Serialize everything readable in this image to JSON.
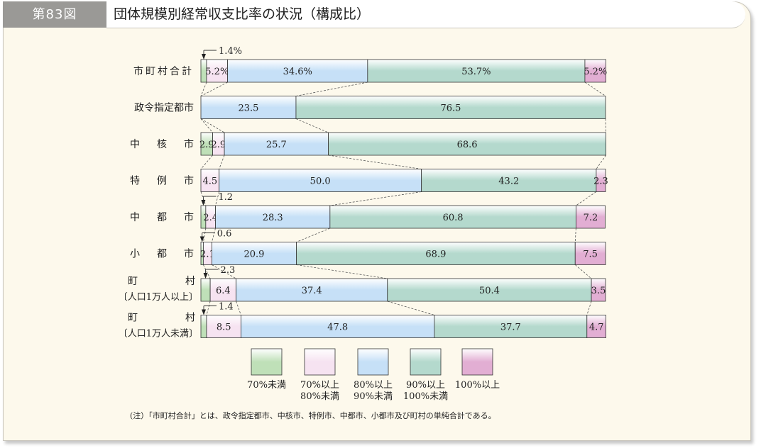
{
  "figure": {
    "number": "第83図",
    "title": "団体規模別経常収支比率の状況（構成比）"
  },
  "chart_data": {
    "type": "bar",
    "stacked": true,
    "horizontal": true,
    "xlim": [
      0,
      100
    ],
    "unit": "%",
    "categories": [
      {
        "lines": [
          "市町村合計"
        ],
        "spaced": true
      },
      {
        "lines": [
          "政令指定都市"
        ],
        "spaced": false
      },
      {
        "lines": [
          "中",
          "核",
          "市"
        ],
        "spaced": false
      },
      {
        "lines": [
          "特",
          "例",
          "市"
        ],
        "spaced": false
      },
      {
        "lines": [
          "中",
          "都",
          "市"
        ],
        "spaced": false
      },
      {
        "lines": [
          "小",
          "都",
          "市"
        ],
        "spaced": false
      },
      {
        "lines": [
          "町",
          "村",
          "〔人口1万人以上〕"
        ],
        "spaced": false
      },
      {
        "lines": [
          "町",
          "村",
          "〔人口1万人未満〕"
        ],
        "spaced": false
      }
    ],
    "series": [
      {
        "name": "70%未満",
        "color": "#bfe0b8",
        "values": [
          1.4,
          0,
          2.9,
          0,
          1.2,
          0.6,
          2.3,
          1.4
        ],
        "labels": [
          "",
          "",
          "2.9",
          "",
          "",
          "",
          "",
          ""
        ]
      },
      {
        "name": "70%以上\n80%未満",
        "color": "#f6e3f1",
        "values": [
          5.2,
          0,
          2.9,
          4.5,
          2.4,
          2.1,
          6.4,
          8.5
        ],
        "labels": [
          "5.2%",
          "",
          "2.9",
          "4.5",
          "2.4",
          "2.1",
          "6.4",
          "8.5"
        ]
      },
      {
        "name": "80%以上\n90%未満",
        "color": "#c6e0f7",
        "values": [
          34.6,
          23.5,
          25.7,
          50.0,
          28.3,
          20.9,
          37.4,
          47.8
        ],
        "labels": [
          "34.6%",
          "23.5",
          "25.7",
          "50.0",
          "28.3",
          "20.9",
          "37.4",
          "47.8"
        ]
      },
      {
        "name": "90%以上\n100%未満",
        "color": "#b4d9cd",
        "values": [
          53.7,
          76.5,
          68.6,
          43.2,
          60.8,
          68.9,
          50.4,
          37.7
        ],
        "labels": [
          "53.7%",
          "76.5",
          "68.6",
          "43.2",
          "60.8",
          "68.9",
          "50.4",
          "37.7"
        ]
      },
      {
        "name": "100%以上",
        "color": "#e2aed3",
        "values": [
          5.2,
          0,
          0,
          2.3,
          7.2,
          7.5,
          3.5,
          4.7
        ],
        "labels": [
          "5.2%",
          "",
          "",
          "2.3",
          "7.2",
          "7.5",
          "3.5",
          "4.7"
        ]
      }
    ],
    "callouts": [
      {
        "row": 0,
        "text": "1.4%"
      },
      {
        "row": 4,
        "text": "1.2"
      },
      {
        "row": 5,
        "text": "0.6"
      },
      {
        "row": 6,
        "text": "2.3"
      },
      {
        "row": 7,
        "text": "1.4"
      }
    ]
  },
  "note": "(注）「市町村合計」とは、政令指定都市、中核市、特例市、中都市、小都市及び町村の単純合計である。"
}
